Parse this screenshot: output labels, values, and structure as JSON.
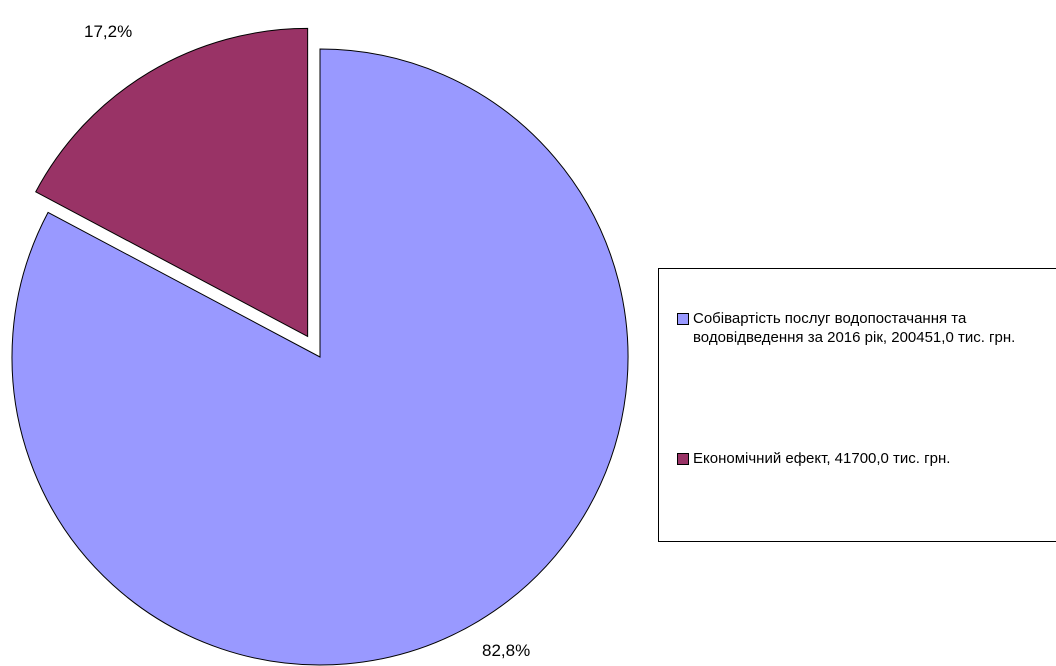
{
  "chart_data": {
    "type": "pie",
    "categories": [
      "Собівартість послуг водопостачання та водовідведення за 2016 рік, 200451,0 тис. грн.",
      "Економічний ефект, 41700,0 тис. грн."
    ],
    "values": [
      200451.0,
      41700.0
    ],
    "percent_labels": [
      "82,8%",
      "17,2%"
    ],
    "colors": [
      "#9999FF",
      "#993366"
    ],
    "exploded": [
      false,
      true
    ],
    "legend_position": "right"
  }
}
